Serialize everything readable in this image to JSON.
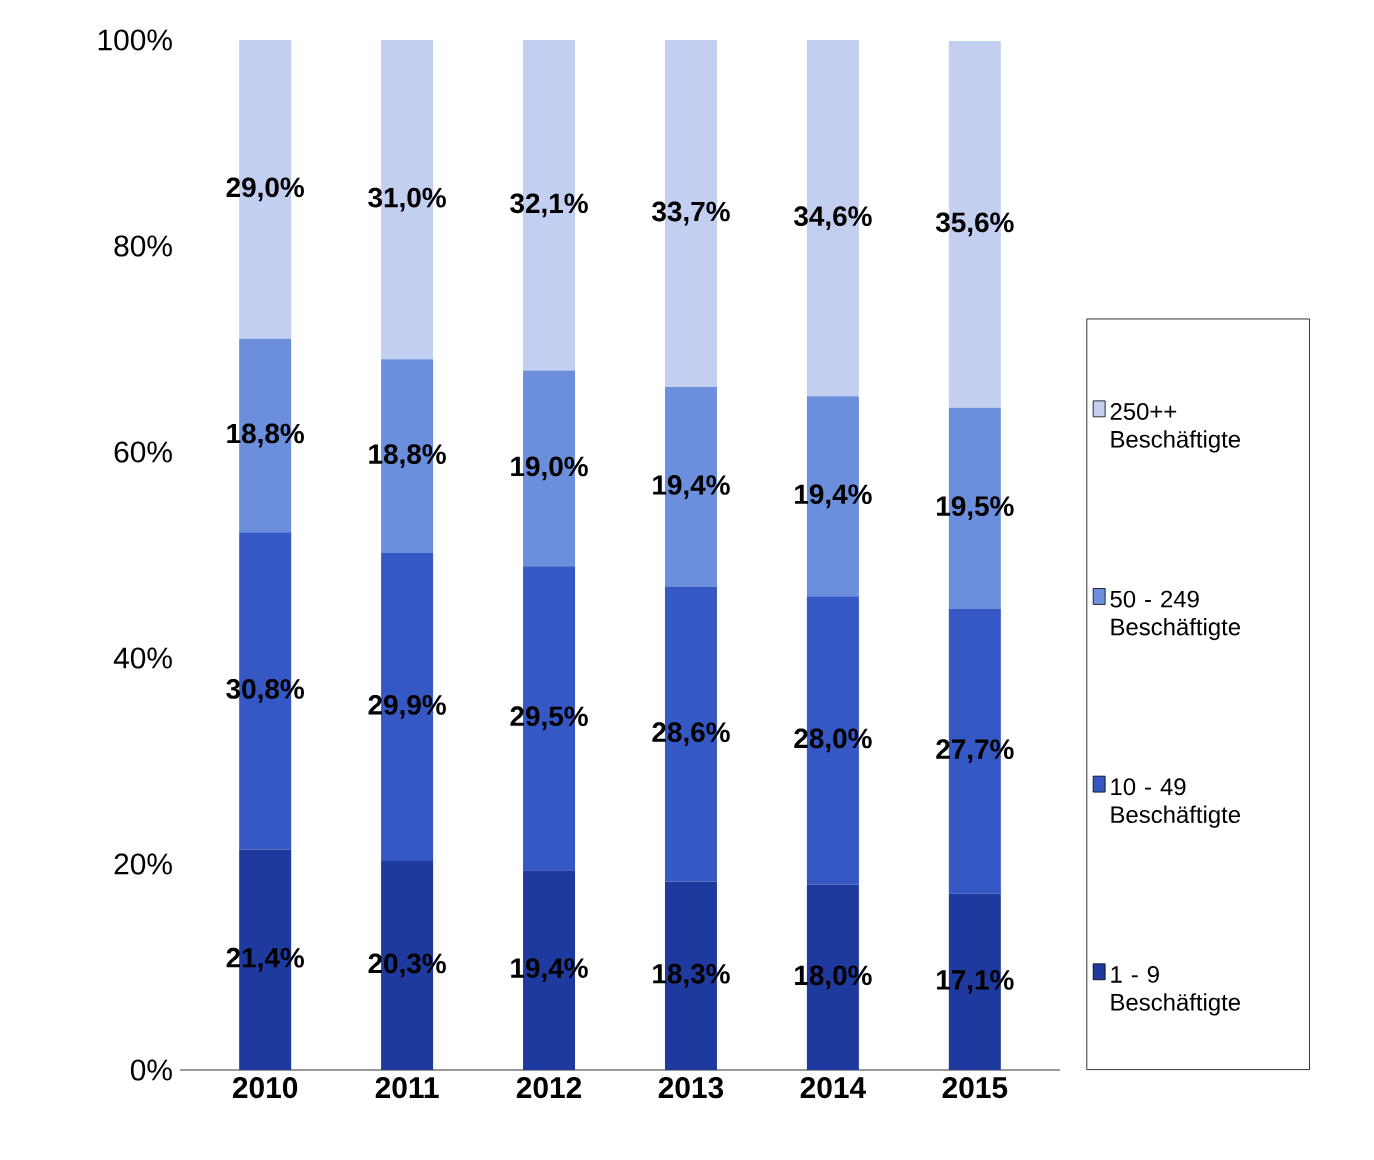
{
  "chart_data": {
    "type": "bar",
    "stacked": true,
    "categories": [
      "2010",
      "2011",
      "2012",
      "2013",
      "2014",
      "2015"
    ],
    "series": [
      {
        "name": "1 - 9 Beschäftigte",
        "color": "#1f3a9e",
        "values": [
          21.4,
          20.3,
          19.4,
          18.3,
          18.0,
          17.1
        ],
        "value_labels": [
          "21,4%",
          "20,3%",
          "19,4%",
          "18,3%",
          "18,0%",
          "17,1%"
        ]
      },
      {
        "name": "10 - 49 Beschäftigte",
        "color": "#3558c4",
        "values": [
          30.8,
          29.9,
          29.5,
          28.6,
          28.0,
          27.7
        ],
        "value_labels": [
          "30,8%",
          "29,9%",
          "29,5%",
          "28,6%",
          "28,0%",
          "27,7%"
        ]
      },
      {
        "name": "50 - 249 Beschäftigte",
        "color": "#6b8fdc",
        "values": [
          18.8,
          18.8,
          19.0,
          19.4,
          19.4,
          19.5
        ],
        "value_labels": [
          "18,8%",
          "18,8%",
          "19,0%",
          "19,4%",
          "19,4%",
          "19,5%"
        ]
      },
      {
        "name": "250++ Beschäftigte",
        "color": "#c2cff0",
        "values": [
          29.0,
          31.0,
          32.1,
          33.7,
          34.6,
          35.6
        ],
        "value_labels": [
          "29,0%",
          "31,0%",
          "32,1%",
          "33,7%",
          "34,6%",
          "35,6%"
        ]
      }
    ],
    "ylim": [
      0,
      100
    ],
    "yticks": [
      {
        "value": 0,
        "label": "0%"
      },
      {
        "value": 20,
        "label": "20%"
      },
      {
        "value": 40,
        "label": "40%"
      },
      {
        "value": 60,
        "label": "60%"
      },
      {
        "value": 80,
        "label": "80%"
      },
      {
        "value": 100,
        "label": "100%"
      }
    ],
    "grid": false,
    "legend": "right"
  }
}
